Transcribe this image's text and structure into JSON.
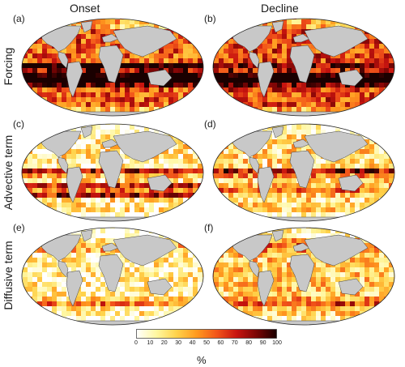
{
  "columns": [
    "Onset",
    "Decline"
  ],
  "rows": [
    "Forcing",
    "Advective term",
    "Diffusive term"
  ],
  "panel_labels": [
    "(a)",
    "(b)",
    "(c)",
    "(d)",
    "(e)",
    "(f)"
  ],
  "colorbar": {
    "ticks": [
      "0",
      "10",
      "20",
      "30",
      "40",
      "50",
      "60",
      "70",
      "80",
      "90",
      "100"
    ],
    "unit": "%",
    "colors": [
      "#ffffff",
      "#fff7a0",
      "#ffd24a",
      "#ff9a1f",
      "#f2551a",
      "#c8140f",
      "#7a0505",
      "#1a0000"
    ]
  },
  "land_color": "#c8c8c8"
}
